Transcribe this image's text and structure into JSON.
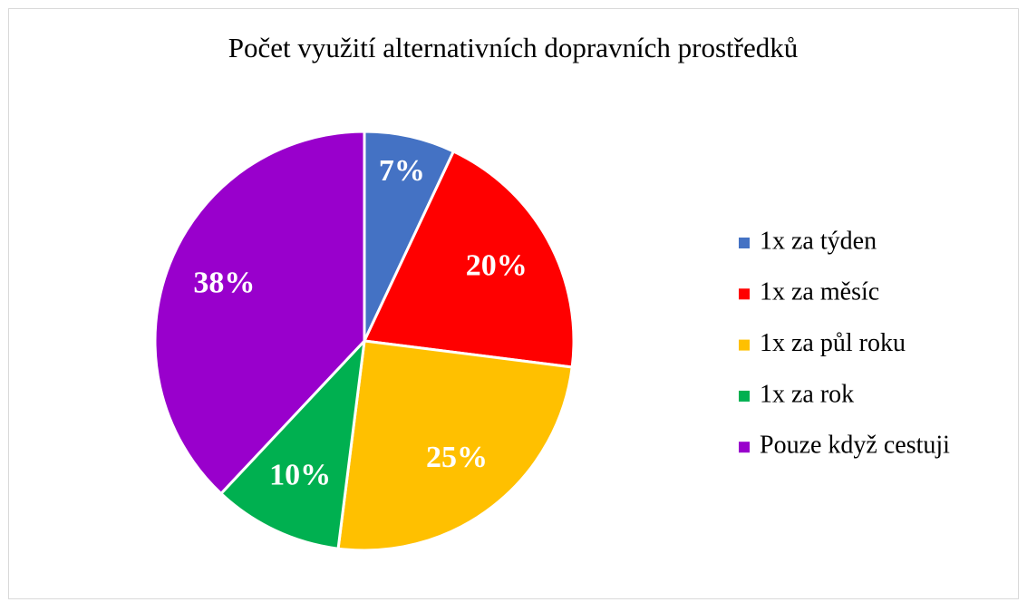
{
  "chart_data": {
    "type": "pie",
    "title": "Počet využití alternativních dopravních prostředků",
    "categories": [
      "1x za týden",
      "1x za měsíc",
      "1x za půl roku",
      "1x za rok",
      "Pouze když cestuji"
    ],
    "values": [
      7,
      20,
      25,
      10,
      38
    ],
    "value_labels": [
      "7%",
      "20%",
      "25%",
      "10%",
      "38%"
    ],
    "colors": [
      "#4472c4",
      "#ff0000",
      "#ffc000",
      "#00b050",
      "#9900cc"
    ],
    "legend": "right"
  }
}
